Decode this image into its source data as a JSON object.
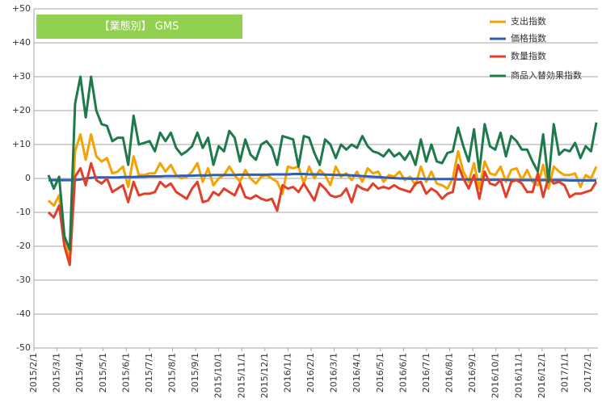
{
  "chart_data": {
    "type": "line",
    "title": "【業態別】 GMS",
    "ylim": [
      -50,
      50
    ],
    "yticks": [
      {
        "value": 50,
        "label": "+50"
      },
      {
        "value": 40,
        "label": "+40"
      },
      {
        "value": 30,
        "label": "+30"
      },
      {
        "value": 20,
        "label": "+20"
      },
      {
        "value": 10,
        "label": "+10"
      },
      0,
      -10,
      -20,
      -30,
      -40,
      -50
    ],
    "grid": true,
    "x_labels": [
      "2015/2/1",
      "2015/3/1",
      "2015/4/1",
      "2015/5/1",
      "2015/6/1",
      "2015/7/1",
      "2015/8/1",
      "2015/9/1",
      "2015/10/1",
      "2015/11/1",
      "2015/12/1",
      "2016/1/1",
      "2016/2/1",
      "2016/3/1",
      "2016/4/1",
      "2016/5/1",
      "2016/6/1",
      "2016/7/1",
      "2016/8/1",
      "2016/9/1",
      "2016/10/1",
      "2016/11/1",
      "2016/12/1",
      "2017/1/1",
      "2017/2/1"
    ],
    "legend": "top-right",
    "series": [
      {
        "name": "支出指数",
        "color": "#f4a300",
        "values": [
          -6.5,
          -8,
          -5,
          -18,
          -24,
          8,
          13,
          5.5,
          13,
          6.5,
          5,
          6,
          1.5,
          2,
          3.5,
          -2.5,
          6.5,
          1,
          1,
          1.5,
          1.5,
          4.5,
          2,
          4,
          1,
          0,
          0.5,
          2,
          4.5,
          -1,
          3,
          -2,
          0,
          1,
          3.5,
          1,
          -1,
          2.5,
          0,
          -1.5,
          0.5,
          1,
          0,
          -1,
          -4.5,
          3.5,
          3,
          3.5,
          -1.5,
          3.5,
          0,
          2.5,
          1,
          -2,
          3.5,
          0.5,
          1.5,
          -0.5,
          2,
          -1,
          3,
          1.5,
          2,
          -1,
          1,
          0.5,
          2,
          -0.5,
          0.5,
          -2,
          3.5,
          -1,
          2,
          -1.5,
          -2,
          -3,
          0,
          8,
          2,
          -1,
          4.5,
          -3,
          5,
          1.5,
          1,
          3.5,
          -1,
          2.5,
          3,
          -0.5,
          2.5,
          -1,
          -2,
          4,
          -3,
          3.5,
          2,
          1,
          1,
          1.5,
          -2.5,
          1,
          0,
          3.5
        ]
      },
      {
        "name": "価格指数",
        "color": "#2e5fb4",
        "values": [
          -0.5,
          -0.5,
          -0.5,
          -0.5,
          -0.5,
          -0.5,
          -0.3,
          0,
          0.2,
          0.3,
          0.3,
          0.3,
          0.3,
          0.3,
          0.4,
          0.4,
          0.4,
          0.5,
          0.5,
          0.6,
          0.6,
          0.6,
          0.7,
          0.7,
          0.7,
          0.8,
          0.8,
          0.8,
          0.9,
          0.9,
          0.9,
          1,
          1,
          1,
          1,
          1,
          1.1,
          1.1,
          1.1,
          1.1,
          1.1,
          1.1,
          1.2,
          1.2,
          1.2,
          1.2,
          1.3,
          1.3,
          1.3,
          1.2,
          1.2,
          1.2,
          1.1,
          1.1,
          1,
          1,
          1,
          0.9,
          0.8,
          0.7,
          0.6,
          0.5,
          0.4,
          0.3,
          0.2,
          0.1,
          0,
          0,
          -0.1,
          -0.1,
          -0.1,
          -0.2,
          -0.2,
          -0.2,
          -0.2,
          -0.2,
          -0.2,
          -0.3,
          -0.3,
          -0.3,
          -0.3,
          -0.3,
          -0.4,
          -0.4,
          -0.4,
          -0.4,
          -0.4,
          -0.5,
          -0.5,
          -0.5,
          -0.5,
          -0.5,
          -0.5,
          -0.5,
          -0.5,
          -0.5,
          -0.5,
          -0.5,
          -0.6,
          -0.6,
          -0.6,
          -0.6,
          -0.6,
          -0.6
        ]
      },
      {
        "name": "数量指数",
        "color": "#e0402a",
        "values": [
          -10,
          -11.5,
          -8,
          -20,
          -25.5,
          0.5,
          3,
          -2,
          4.5,
          -0.5,
          -1.5,
          0,
          -4,
          -3,
          -2,
          -7,
          -1,
          -5,
          -4.5,
          -4.5,
          -4,
          -1,
          -2.5,
          -1.5,
          -4,
          -5,
          -6,
          -3,
          -1,
          -7,
          -6.5,
          -4,
          -5,
          -3,
          -4,
          -5,
          -1.5,
          -5.5,
          -6,
          -5,
          -6,
          -6.5,
          -6,
          -9.5,
          -2,
          -3,
          -2.5,
          -4,
          -1.5,
          -4,
          -6.5,
          -1.5,
          -3,
          -5,
          -5.5,
          -5,
          -3,
          -7,
          -2,
          -3,
          -3.5,
          -1.5,
          -3,
          -2.5,
          -3,
          -2,
          -3,
          -3.5,
          -4,
          -1.5,
          -1,
          -4.5,
          -3,
          -4,
          -6,
          -4.5,
          -4,
          4,
          0,
          -3,
          1,
          -6,
          2,
          -1.5,
          -2,
          -0.5,
          -5.5,
          -1,
          -0.5,
          -1.5,
          -4,
          -4,
          1.5,
          -5.5,
          0.5,
          -1.5,
          -1,
          -2,
          -5.5,
          -4.5,
          -4.5,
          -4,
          -3.5,
          -1
        ]
      },
      {
        "name": "商品入替効果指数",
        "color": "#1e7a4a",
        "values": [
          1,
          -3,
          0.5,
          -17,
          -21,
          22,
          30,
          18,
          30,
          20,
          16,
          15.5,
          11,
          12,
          12,
          4,
          18.5,
          10,
          10.5,
          11,
          8,
          13.5,
          11,
          13.5,
          9,
          7,
          8,
          9.5,
          13.5,
          9,
          12,
          4,
          9.5,
          8,
          14,
          12,
          5,
          11.5,
          7,
          5.5,
          10,
          11,
          9,
          4,
          12.5,
          12,
          11.5,
          3.5,
          12.5,
          12,
          7.5,
          4,
          11.5,
          10,
          6,
          10,
          8.5,
          10,
          9,
          12.5,
          9.5,
          8,
          7.5,
          6.5,
          8.5,
          6.5,
          7.5,
          5.5,
          8,
          4,
          11.5,
          5,
          10,
          5,
          4.5,
          7.5,
          8,
          15,
          9.5,
          5,
          14.5,
          2,
          16,
          9.5,
          8.5,
          13.5,
          6.5,
          12.5,
          11,
          8.5,
          8.5,
          5,
          2,
          13,
          -1,
          16,
          7,
          8.5,
          8,
          10.5,
          6,
          9.5,
          8,
          16.5
        ]
      }
    ]
  }
}
